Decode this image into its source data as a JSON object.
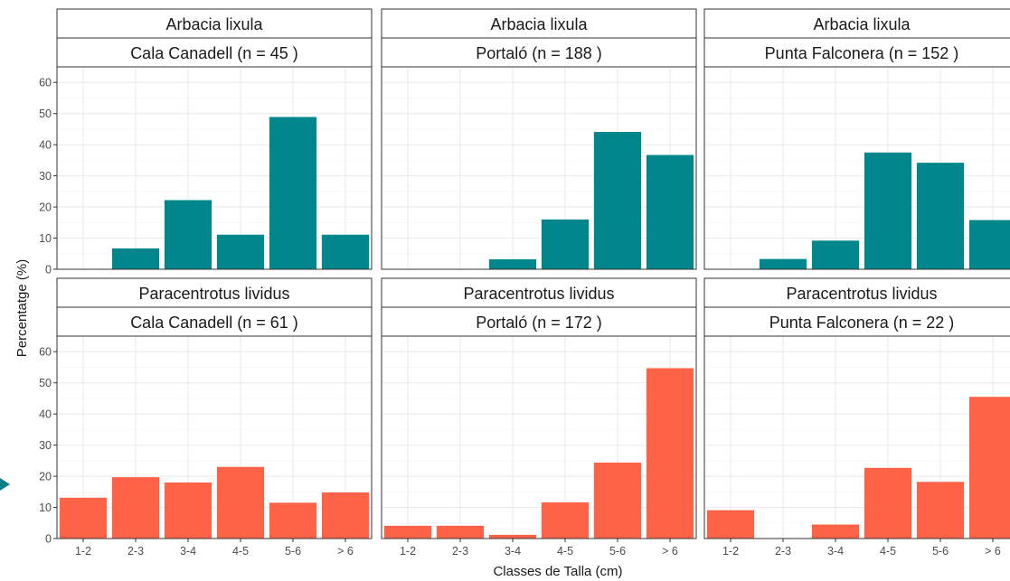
{
  "colors": {
    "teal": "#00868B",
    "coral": "#FF6347",
    "grid": "#ebebeb",
    "border": "#333333"
  },
  "x_axis_title": "Classes de Talla (cm)",
  "y_axis_title": "Percentatge (%)",
  "chart_data": {
    "type": "bar",
    "facet_rows": [
      "Arbacia lixula",
      "Paracentrotus lividus"
    ],
    "facet_cols": [
      "Cala Canadell",
      "Portaló",
      "Punta Falconera"
    ],
    "categories": [
      "1-2",
      "2-3",
      "3-4",
      "4-5",
      "5-6",
      "> 6"
    ],
    "ylim": [
      0,
      60
    ],
    "yticks": [
      0,
      10,
      20,
      30,
      40,
      50,
      60
    ],
    "xlabel": "Classes de Talla (cm)",
    "ylabel": "Percentatge (%)",
    "grid": true,
    "panels": [
      {
        "species": "Arbacia lixula",
        "site_label": "Cala Canadell (n =  45 )",
        "color": "#00868B",
        "values": [
          0,
          6.7,
          22.2,
          11.1,
          48.9,
          11.1
        ]
      },
      {
        "species": "Arbacia lixula",
        "site_label": "Portaló (n =  188 )",
        "color": "#00868B",
        "values": [
          0,
          0,
          3.2,
          16.0,
          44.1,
          36.7
        ]
      },
      {
        "species": "Arbacia lixula",
        "site_label": "Punta Falconera (n =  152 )",
        "color": "#00868B",
        "values": [
          0,
          3.3,
          9.2,
          37.5,
          34.2,
          15.8
        ]
      },
      {
        "species": "Paracentrotus lividus",
        "site_label": "Cala Canadell (n =  61 )",
        "color": "#FF6347",
        "values": [
          13.1,
          19.7,
          18.0,
          23.0,
          11.5,
          14.8
        ]
      },
      {
        "species": "Paracentrotus lividus",
        "site_label": "Portaló (n =  172 )",
        "color": "#FF6347",
        "values": [
          4.1,
          4.1,
          1.2,
          11.6,
          24.4,
          54.7
        ]
      },
      {
        "species": "Paracentrotus lividus",
        "site_label": "Punta Falconera (n =  22 )",
        "color": "#FF6347",
        "values": [
          9.1,
          0,
          4.5,
          22.7,
          18.2,
          45.5
        ]
      }
    ]
  }
}
